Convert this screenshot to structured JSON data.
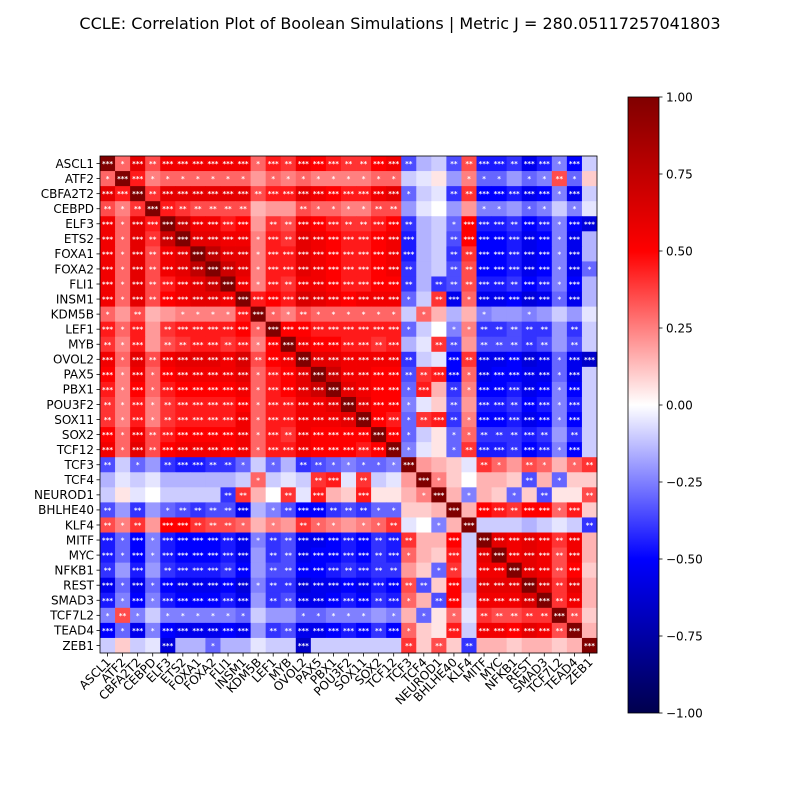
{
  "chart_data": {
    "type": "heatmap",
    "title": "CCLE: Correlation Plot of Boolean Simulations | Metric J = 280.05117257041803",
    "labels": [
      "ASCL1",
      "ATF2",
      "CBFA2T2",
      "CEBPD",
      "ELF3",
      "ETS2",
      "FOXA1",
      "FOXA2",
      "FLI1",
      "INSM1",
      "KDM5B",
      "LEF1",
      "MYB",
      "OVOL2",
      "PAX5",
      "PBX1",
      "POU3F2",
      "SOX11",
      "SOX2",
      "TCF12",
      "TCF3",
      "TCF4",
      "NEUROD1",
      "BHLHE40",
      "KLF4",
      "MITF",
      "MYC",
      "NFKB1",
      "REST",
      "SMAD3",
      "TCF7L2",
      "TEAD4",
      "ZEB1"
    ],
    "clim": [
      -1.0,
      1.0
    ],
    "colormap": "seismic",
    "colorbar_ticks": [
      "1.00",
      "0.75",
      "0.50",
      "0.25",
      "0.00",
      "−0.25",
      "−0.50",
      "−0.75",
      "−1.00"
    ],
    "significance_markers": [
      "*",
      "**",
      "***"
    ],
    "values": [
      [
        1.0,
        0.3,
        0.6,
        0.35,
        0.55,
        0.55,
        0.55,
        0.55,
        0.55,
        0.55,
        0.3,
        0.45,
        0.4,
        0.55,
        0.5,
        0.45,
        0.4,
        0.4,
        0.5,
        0.55,
        -0.35,
        -0.15,
        -0.1,
        -0.35,
        0.35,
        -0.45,
        -0.45,
        -0.4,
        -0.55,
        -0.45,
        -0.25,
        -0.5,
        -0.1
      ],
      [
        0.3,
        1.0,
        0.45,
        0.25,
        0.3,
        0.3,
        0.3,
        0.3,
        0.3,
        0.3,
        0.2,
        0.3,
        0.25,
        0.3,
        0.25,
        0.25,
        0.25,
        0.25,
        0.3,
        0.3,
        -0.1,
        -0.05,
        0.05,
        -0.2,
        0.25,
        -0.3,
        -0.3,
        -0.2,
        -0.3,
        -0.25,
        0.35,
        -0.3,
        0.1
      ],
      [
        0.6,
        0.45,
        1.0,
        0.4,
        0.6,
        0.6,
        0.6,
        0.6,
        0.6,
        0.6,
        0.35,
        0.45,
        0.45,
        0.6,
        0.55,
        0.5,
        0.45,
        0.45,
        0.55,
        0.6,
        -0.3,
        -0.1,
        -0.05,
        -0.4,
        0.4,
        -0.5,
        -0.5,
        -0.45,
        -0.55,
        -0.5,
        -0.25,
        -0.55,
        -0.1
      ],
      [
        0.35,
        0.25,
        0.4,
        1.0,
        0.45,
        0.4,
        0.35,
        0.35,
        0.35,
        0.35,
        0.15,
        0.2,
        0.2,
        0.35,
        0.3,
        0.3,
        0.25,
        0.25,
        0.35,
        0.35,
        -0.2,
        -0.05,
        0.0,
        -0.2,
        0.2,
        -0.25,
        -0.25,
        -0.2,
        -0.3,
        -0.25,
        -0.1,
        -0.25,
        -0.05
      ],
      [
        0.55,
        0.3,
        0.6,
        0.45,
        1.0,
        0.7,
        0.55,
        0.55,
        0.45,
        0.5,
        0.2,
        0.4,
        0.35,
        0.55,
        0.5,
        0.45,
        0.4,
        0.4,
        0.45,
        0.5,
        -0.4,
        -0.15,
        -0.1,
        -0.3,
        0.5,
        -0.45,
        -0.45,
        -0.4,
        -0.5,
        -0.45,
        -0.25,
        -0.5,
        -0.6
      ],
      [
        0.55,
        0.3,
        0.6,
        0.4,
        0.7,
        1.0,
        0.6,
        0.6,
        0.55,
        0.55,
        0.25,
        0.45,
        0.4,
        0.6,
        0.55,
        0.5,
        0.45,
        0.45,
        0.5,
        0.55,
        -0.45,
        -0.15,
        -0.1,
        -0.35,
        0.5,
        -0.5,
        -0.5,
        -0.45,
        -0.55,
        -0.5,
        -0.25,
        -0.55,
        -0.15
      ],
      [
        0.55,
        0.3,
        0.6,
        0.35,
        0.55,
        0.6,
        1.0,
        0.75,
        0.6,
        0.6,
        0.25,
        0.45,
        0.45,
        0.6,
        0.55,
        0.5,
        0.45,
        0.45,
        0.5,
        0.55,
        -0.45,
        -0.15,
        -0.1,
        -0.4,
        0.4,
        -0.5,
        -0.5,
        -0.45,
        -0.55,
        -0.5,
        -0.25,
        -0.55,
        -0.15
      ],
      [
        0.55,
        0.3,
        0.6,
        0.35,
        0.55,
        0.6,
        0.75,
        1.0,
        0.7,
        0.6,
        0.25,
        0.45,
        0.45,
        0.6,
        0.55,
        0.5,
        0.45,
        0.45,
        0.5,
        0.55,
        -0.4,
        -0.15,
        -0.1,
        -0.35,
        0.35,
        -0.5,
        -0.5,
        -0.45,
        -0.55,
        -0.5,
        -0.25,
        -0.55,
        -0.3
      ],
      [
        0.55,
        0.3,
        0.6,
        0.35,
        0.45,
        0.55,
        0.6,
        0.7,
        1.0,
        0.55,
        0.25,
        0.45,
        0.4,
        0.55,
        0.55,
        0.5,
        0.45,
        0.45,
        0.5,
        0.5,
        -0.4,
        -0.15,
        -0.4,
        -0.35,
        0.35,
        -0.45,
        -0.45,
        -0.4,
        -0.5,
        -0.45,
        -0.25,
        -0.5,
        -0.15
      ],
      [
        0.55,
        0.3,
        0.6,
        0.35,
        0.5,
        0.55,
        0.6,
        0.6,
        0.55,
        1.0,
        0.45,
        0.5,
        0.45,
        0.65,
        0.6,
        0.55,
        0.5,
        0.55,
        0.55,
        0.55,
        -0.3,
        -0.1,
        0.4,
        -0.55,
        0.3,
        -0.55,
        -0.55,
        -0.5,
        -0.6,
        -0.55,
        -0.3,
        -0.55,
        -0.15
      ],
      [
        0.3,
        0.2,
        0.35,
        0.15,
        0.2,
        0.25,
        0.25,
        0.25,
        0.25,
        0.45,
        1.0,
        0.3,
        0.25,
        0.35,
        0.3,
        0.3,
        0.3,
        0.3,
        0.3,
        0.3,
        -0.1,
        0.3,
        0.15,
        -0.15,
        0.15,
        -0.25,
        -0.2,
        -0.2,
        -0.25,
        -0.2,
        -0.1,
        -0.2,
        -0.05
      ],
      [
        0.45,
        0.3,
        0.45,
        0.2,
        0.4,
        0.45,
        0.45,
        0.45,
        0.45,
        0.5,
        0.3,
        1.0,
        0.5,
        0.5,
        0.45,
        0.45,
        0.45,
        0.45,
        0.45,
        0.45,
        -0.3,
        -0.1,
        0.0,
        -0.25,
        0.25,
        -0.4,
        -0.4,
        -0.35,
        -0.4,
        -0.4,
        -0.2,
        -0.4,
        -0.1
      ],
      [
        0.4,
        0.25,
        0.45,
        0.2,
        0.35,
        0.4,
        0.45,
        0.45,
        0.4,
        0.45,
        0.25,
        0.5,
        1.0,
        0.55,
        0.5,
        0.5,
        0.45,
        0.45,
        0.4,
        0.45,
        -0.15,
        -0.05,
        0.4,
        -0.35,
        0.2,
        -0.35,
        -0.35,
        -0.35,
        -0.4,
        -0.35,
        -0.2,
        -0.35,
        -0.1
      ],
      [
        0.55,
        0.3,
        0.6,
        0.35,
        0.55,
        0.6,
        0.6,
        0.6,
        0.55,
        0.65,
        0.35,
        0.5,
        0.55,
        1.0,
        0.6,
        0.6,
        0.55,
        0.55,
        0.55,
        0.55,
        -0.4,
        -0.1,
        -0.05,
        -0.5,
        0.4,
        -0.55,
        -0.55,
        -0.5,
        -0.6,
        -0.55,
        -0.3,
        -0.55,
        -0.65
      ],
      [
        0.5,
        0.25,
        0.55,
        0.3,
        0.5,
        0.55,
        0.55,
        0.55,
        0.55,
        0.6,
        0.3,
        0.45,
        0.5,
        0.6,
        1.0,
        0.7,
        0.55,
        0.55,
        0.5,
        0.5,
        -0.35,
        0.4,
        0.45,
        -0.5,
        0.3,
        -0.55,
        -0.5,
        -0.5,
        -0.55,
        -0.55,
        -0.3,
        -0.55,
        -0.1
      ],
      [
        0.45,
        0.25,
        0.5,
        0.3,
        0.45,
        0.5,
        0.5,
        0.5,
        0.5,
        0.55,
        0.3,
        0.45,
        0.5,
        0.6,
        0.7,
        1.0,
        0.6,
        0.55,
        0.5,
        0.5,
        -0.3,
        0.45,
        0.15,
        -0.4,
        0.25,
        -0.5,
        -0.5,
        -0.45,
        -0.55,
        -0.5,
        -0.25,
        -0.5,
        -0.1
      ],
      [
        0.4,
        0.25,
        0.45,
        0.25,
        0.4,
        0.45,
        0.45,
        0.45,
        0.45,
        0.5,
        0.3,
        0.45,
        0.45,
        0.55,
        0.55,
        0.6,
        1.0,
        0.6,
        0.5,
        0.5,
        -0.25,
        -0.05,
        0.1,
        -0.35,
        0.2,
        -0.45,
        -0.45,
        -0.4,
        -0.5,
        -0.45,
        -0.25,
        -0.45,
        -0.1
      ],
      [
        0.4,
        0.25,
        0.45,
        0.25,
        0.4,
        0.45,
        0.45,
        0.45,
        0.45,
        0.55,
        0.3,
        0.45,
        0.45,
        0.55,
        0.55,
        0.55,
        0.6,
        1.0,
        0.5,
        0.45,
        -0.3,
        0.4,
        0.45,
        -0.4,
        0.25,
        -0.5,
        -0.5,
        -0.45,
        -0.55,
        -0.5,
        -0.25,
        -0.5,
        -0.1
      ],
      [
        0.5,
        0.3,
        0.55,
        0.35,
        0.45,
        0.5,
        0.5,
        0.5,
        0.5,
        0.55,
        0.3,
        0.45,
        0.4,
        0.55,
        0.5,
        0.5,
        0.5,
        0.5,
        1.0,
        0.5,
        -0.3,
        -0.1,
        0.05,
        -0.3,
        0.3,
        -0.4,
        -0.4,
        -0.4,
        -0.45,
        -0.4,
        -0.2,
        -0.4,
        -0.1
      ],
      [
        0.55,
        0.3,
        0.6,
        0.35,
        0.5,
        0.55,
        0.55,
        0.55,
        0.5,
        0.55,
        0.3,
        0.45,
        0.45,
        0.55,
        0.5,
        0.5,
        0.5,
        0.45,
        0.5,
        1.0,
        -0.25,
        -0.05,
        0.05,
        -0.3,
        0.4,
        -0.45,
        -0.45,
        -0.4,
        -0.5,
        -0.45,
        -0.25,
        -0.5,
        -0.1
      ],
      [
        -0.35,
        -0.1,
        -0.3,
        -0.2,
        -0.4,
        -0.45,
        -0.45,
        -0.4,
        -0.4,
        -0.3,
        -0.1,
        -0.3,
        -0.15,
        -0.4,
        -0.35,
        -0.3,
        -0.25,
        -0.3,
        -0.3,
        -0.25,
        1.0,
        0.2,
        0.15,
        0.1,
        -0.05,
        0.4,
        0.3,
        0.2,
        0.35,
        0.3,
        0.15,
        0.3,
        0.4
      ],
      [
        -0.15,
        -0.05,
        -0.1,
        -0.05,
        -0.15,
        -0.15,
        -0.15,
        -0.15,
        -0.15,
        -0.1,
        0.3,
        -0.1,
        -0.05,
        -0.1,
        0.4,
        0.45,
        -0.05,
        0.4,
        -0.1,
        -0.05,
        0.2,
        1.0,
        0.25,
        0.1,
        0.0,
        0.15,
        0.15,
        0.1,
        -0.35,
        0.15,
        -0.3,
        0.1,
        0.1
      ],
      [
        -0.1,
        0.05,
        -0.05,
        0.0,
        -0.1,
        -0.1,
        -0.1,
        -0.1,
        -0.4,
        0.4,
        0.15,
        0.0,
        0.4,
        -0.05,
        0.45,
        0.15,
        0.1,
        0.45,
        0.05,
        0.05,
        0.15,
        0.25,
        1.0,
        0.15,
        -0.25,
        0.15,
        0.1,
        -0.3,
        0.1,
        -0.35,
        0.05,
        0.05,
        0.35
      ],
      [
        -0.35,
        -0.2,
        -0.4,
        -0.2,
        -0.3,
        -0.35,
        -0.4,
        -0.35,
        -0.35,
        -0.55,
        -0.15,
        -0.25,
        -0.35,
        -0.5,
        -0.5,
        -0.4,
        -0.35,
        -0.4,
        -0.3,
        -0.3,
        0.1,
        0.1,
        0.15,
        1.0,
        0.15,
        0.5,
        0.45,
        0.4,
        0.5,
        0.5,
        0.3,
        0.45,
        0.1
      ],
      [
        0.35,
        0.25,
        0.4,
        0.2,
        0.5,
        0.5,
        0.4,
        0.35,
        0.35,
        0.3,
        0.15,
        0.25,
        0.2,
        0.4,
        0.3,
        0.25,
        0.2,
        0.25,
        0.3,
        0.4,
        -0.05,
        0.0,
        -0.25,
        0.15,
        1.0,
        -0.1,
        -0.1,
        -0.1,
        -0.15,
        -0.1,
        -0.05,
        -0.1,
        -0.4
      ],
      [
        -0.45,
        -0.3,
        -0.5,
        -0.25,
        -0.45,
        -0.5,
        -0.5,
        -0.5,
        -0.45,
        -0.55,
        -0.25,
        -0.4,
        -0.35,
        -0.55,
        -0.55,
        -0.5,
        -0.45,
        -0.5,
        -0.4,
        -0.45,
        0.4,
        0.15,
        0.15,
        0.5,
        -0.1,
        1.0,
        0.6,
        0.55,
        0.6,
        0.55,
        0.4,
        0.55,
        0.15
      ],
      [
        -0.45,
        -0.3,
        -0.5,
        -0.25,
        -0.45,
        -0.5,
        -0.5,
        -0.5,
        -0.45,
        -0.55,
        -0.2,
        -0.4,
        -0.35,
        -0.55,
        -0.5,
        -0.5,
        -0.45,
        -0.5,
        -0.4,
        -0.45,
        0.3,
        0.15,
        0.1,
        0.45,
        -0.1,
        0.6,
        1.0,
        0.55,
        0.6,
        0.55,
        0.35,
        0.55,
        0.15
      ],
      [
        -0.4,
        -0.2,
        -0.45,
        -0.2,
        -0.4,
        -0.45,
        -0.45,
        -0.45,
        -0.4,
        -0.5,
        -0.2,
        -0.35,
        -0.35,
        -0.5,
        -0.5,
        -0.45,
        -0.4,
        -0.45,
        -0.4,
        -0.4,
        0.2,
        0.1,
        -0.3,
        0.4,
        -0.1,
        0.55,
        0.55,
        1.0,
        0.6,
        0.55,
        0.35,
        0.5,
        0.1
      ],
      [
        -0.55,
        -0.3,
        -0.55,
        -0.3,
        -0.5,
        -0.55,
        -0.55,
        -0.55,
        -0.5,
        -0.6,
        -0.25,
        -0.4,
        -0.4,
        -0.6,
        -0.55,
        -0.55,
        -0.5,
        -0.55,
        -0.45,
        -0.5,
        0.35,
        -0.35,
        0.1,
        0.5,
        -0.15,
        0.6,
        0.6,
        0.6,
        1.0,
        0.65,
        0.4,
        0.6,
        0.15
      ],
      [
        -0.45,
        -0.25,
        -0.5,
        -0.25,
        -0.45,
        -0.5,
        -0.5,
        -0.5,
        -0.45,
        -0.55,
        -0.2,
        -0.4,
        -0.35,
        -0.55,
        -0.55,
        -0.5,
        -0.45,
        -0.5,
        -0.4,
        -0.45,
        0.3,
        0.15,
        -0.35,
        0.5,
        -0.1,
        0.55,
        0.55,
        0.55,
        0.65,
        1.0,
        0.4,
        0.55,
        0.15
      ],
      [
        -0.25,
        0.35,
        -0.25,
        -0.1,
        -0.25,
        -0.25,
        -0.25,
        -0.25,
        -0.25,
        -0.3,
        -0.1,
        -0.2,
        -0.2,
        -0.3,
        -0.3,
        -0.25,
        -0.25,
        -0.25,
        -0.2,
        -0.25,
        0.15,
        -0.3,
        0.05,
        0.3,
        -0.05,
        0.4,
        0.35,
        0.35,
        0.4,
        0.4,
        1.0,
        0.35,
        0.1
      ],
      [
        -0.5,
        -0.3,
        -0.55,
        -0.25,
        -0.5,
        -0.55,
        -0.55,
        -0.55,
        -0.5,
        -0.55,
        -0.2,
        -0.4,
        -0.35,
        -0.55,
        -0.55,
        -0.5,
        -0.45,
        -0.5,
        -0.4,
        -0.5,
        0.3,
        0.1,
        0.05,
        0.45,
        -0.1,
        0.55,
        0.55,
        0.5,
        0.6,
        0.55,
        0.35,
        1.0,
        0.15
      ],
      [
        -0.1,
        0.1,
        -0.1,
        -0.05,
        -0.6,
        -0.15,
        -0.15,
        -0.3,
        -0.15,
        -0.15,
        -0.05,
        -0.1,
        -0.1,
        -0.65,
        -0.1,
        -0.1,
        -0.1,
        -0.1,
        -0.1,
        -0.1,
        0.4,
        0.1,
        0.35,
        0.1,
        -0.4,
        0.15,
        0.15,
        0.1,
        0.15,
        0.15,
        0.1,
        0.15,
        1.0
      ]
    ]
  }
}
